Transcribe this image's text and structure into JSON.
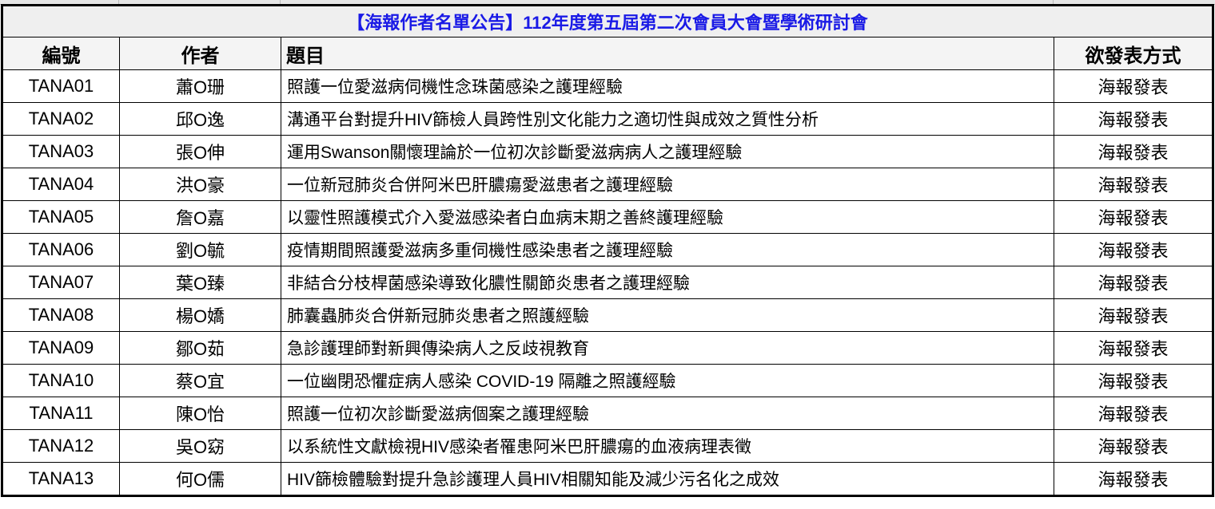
{
  "title": "【海報作者名單公告】112年度第五屆第二次會員大會暨學術研討會",
  "headers": {
    "id": "編號",
    "author": "作者",
    "topic": "題目",
    "method": "欲發表方式"
  },
  "rows": [
    {
      "id": "TANA01",
      "author": "蕭O珊",
      "topic": "照護一位愛滋病伺機性念珠菌感染之護理經驗",
      "method": "海報發表"
    },
    {
      "id": "TANA02",
      "author": "邱O逸",
      "topic": "溝通平台對提升HIV篩檢人員跨性別文化能力之適切性與成效之質性分析",
      "method": "海報發表"
    },
    {
      "id": "TANA03",
      "author": "張O伸",
      "topic": "運用Swanson關懷理論於一位初次診斷愛滋病病人之護理經驗",
      "method": "海報發表"
    },
    {
      "id": "TANA04",
      "author": "洪O豪",
      "topic": "一位新冠肺炎合併阿米巴肝膿瘍愛滋患者之護理經驗",
      "method": "海報發表"
    },
    {
      "id": "TANA05",
      "author": "詹O嘉",
      "topic": "以靈性照護模式介入愛滋感染者白血病末期之善終護理經驗",
      "method": "海報發表"
    },
    {
      "id": "TANA06",
      "author": "劉O毓",
      "topic": "疫情期間照護愛滋病多重伺機性感染患者之護理經驗",
      "method": "海報發表"
    },
    {
      "id": "TANA07",
      "author": "葉O臻",
      "topic": "非結合分枝桿菌感染導致化膿性關節炎患者之護理經驗",
      "method": "海報發表"
    },
    {
      "id": "TANA08",
      "author": "楊O嬌",
      "topic": "肺囊蟲肺炎合併新冠肺炎患者之照護經驗",
      "method": "海報發表"
    },
    {
      "id": "TANA09",
      "author": "鄒O茹",
      "topic": "急診護理師對新興傳染病人之反歧視教育",
      "method": "海報發表"
    },
    {
      "id": "TANA10",
      "author": "蔡O宜",
      "topic": "一位幽閉恐懼症病人感染 COVID-19 隔離之照護經驗",
      "method": "海報發表"
    },
    {
      "id": "TANA11",
      "author": "陳O怡",
      "topic": "照護一位初次診斷愛滋病個案之護理經驗",
      "method": "海報發表"
    },
    {
      "id": "TANA12",
      "author": "吳O窈",
      "topic": "以系統性文獻檢視HIV感染者罹患阿米巴肝膿瘍的血液病理表徵",
      "method": "海報發表"
    },
    {
      "id": "TANA13",
      "author": "何O儒",
      "topic": "HIV篩檢體驗對提升急診護理人員HIV相關知能及減少污名化之成效",
      "method": "海報發表"
    }
  ],
  "colors": {
    "title": "#1a1ae6",
    "title_bg": "#efefef"
  }
}
